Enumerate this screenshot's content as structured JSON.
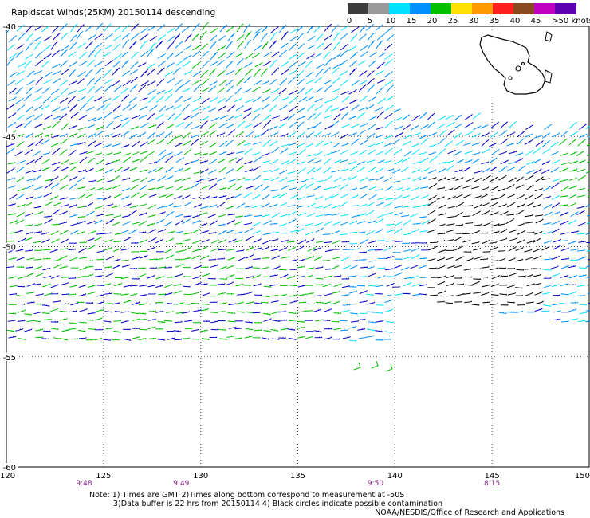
{
  "title": "Rapidscat Winds(25KM) 20150114 descending",
  "legend": {
    "labels": [
      "0",
      "5",
      "10",
      "15",
      "20",
      "25",
      "30",
      "35",
      "40",
      "45",
      ">50 knots"
    ],
    "colors": [
      "#3c3c3c",
      "#9a9a9a",
      "#00e0ff",
      "#0090ff",
      "#00c000",
      "#ffe000",
      "#ff9a00",
      "#ff2020",
      "#8a4a20",
      "#c000c0",
      "#5a00b0"
    ]
  },
  "axes": {
    "lon_ticks": [
      "120",
      "125",
      "130",
      "135",
      "140",
      "145",
      "150"
    ],
    "lat_ticks": [
      "-40",
      "-45",
      "-50",
      "-55",
      "-60"
    ],
    "lon_range": [
      120,
      150
    ],
    "lat_range": [
      -60,
      -40
    ]
  },
  "times": [
    "9:48",
    "9:49",
    "9:50",
    "8:15"
  ],
  "notes": [
    "Note: 1) Times are GMT 2)Times along bottom correspond to measurement at -50S",
    "3)Data buffer is 22 hrs from 20150114 4) Black circles indicate possible contamination"
  ],
  "credit": "NOAA/NESDIS/Office of Research and Applications",
  "colors": {
    "grid": "#555555",
    "wind_light": "#00e0ff",
    "wind_mid": "#0090ff",
    "wind_strong_blue": "#0000c8",
    "wind_green": "#00c000",
    "wind_calm": "#000000"
  },
  "inset": {
    "region": "tasmania-outline"
  }
}
